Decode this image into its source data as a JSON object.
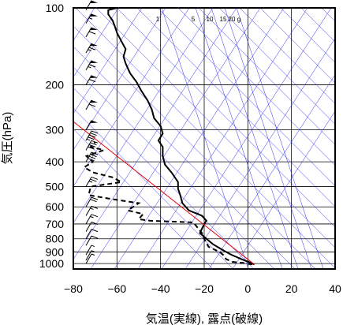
{
  "chart_data": {
    "type": "line",
    "xlabel": "気温(実線), 露点(破線)",
    "ylabel": "気圧(hPa)",
    "xlim": [
      -80,
      40
    ],
    "ylim_hpa": [
      1050,
      100
    ],
    "y_scale": "log",
    "grid": true,
    "x_ticks": [
      -80,
      -60,
      -40,
      -20,
      0,
      20,
      40
    ],
    "x_tick_labels": [
      "−80",
      "−60",
      "−40",
      "−20",
      "0",
      "20",
      "40"
    ],
    "y_ticks": [
      100,
      200,
      300,
      400,
      500,
      600,
      700,
      800,
      900,
      1000
    ],
    "y_tick_labels": [
      "100",
      "200",
      "300",
      "400",
      "500",
      "600",
      "700",
      "800",
      "900",
      "1000"
    ],
    "mixing_ratio_labels": [
      "1",
      "5",
      "10",
      "15",
      "20",
      "g"
    ],
    "mixing_ratio_values": [
      1,
      5,
      10,
      15,
      20
    ],
    "colors": {
      "temperature": "#000000",
      "dewpoint": "#000000",
      "parcel": "#e8000b",
      "adiabats": "#2a2af0",
      "grid": "#000000"
    },
    "series": [
      {
        "style": "solid",
        "points": [
          [
            3,
            1008
          ],
          [
            1,
            990
          ],
          [
            -3,
            960
          ],
          [
            -8,
            920
          ],
          [
            -12,
            880
          ],
          [
            -16,
            840
          ],
          [
            -19,
            800
          ],
          [
            -22,
            760
          ],
          [
            -20,
            700
          ],
          [
            -19,
            680
          ],
          [
            -21,
            650
          ],
          [
            -27,
            620
          ],
          [
            -30,
            580
          ],
          [
            -31,
            540
          ],
          [
            -32,
            510
          ],
          [
            -32,
            480
          ],
          [
            -35,
            440
          ],
          [
            -38,
            410
          ],
          [
            -39,
            380
          ],
          [
            -39,
            350
          ],
          [
            -41,
            330
          ],
          [
            -39,
            310
          ],
          [
            -40,
            290
          ],
          [
            -43,
            270
          ],
          [
            -44,
            250
          ],
          [
            -46,
            230
          ],
          [
            -49,
            210
          ],
          [
            -51,
            195
          ],
          [
            -54,
            180
          ],
          [
            -56,
            165
          ],
          [
            -57,
            155
          ],
          [
            -56,
            145
          ],
          [
            -58,
            135
          ],
          [
            -60,
            125
          ],
          [
            -61,
            118
          ],
          [
            -62,
            112
          ],
          [
            -64,
            106
          ],
          [
            -64,
            102
          ],
          [
            -60,
            100
          ]
        ]
      },
      {
        "style": "dashed",
        "points": [
          [
            2,
            1008
          ],
          [
            -2,
            995
          ],
          [
            -7,
            985
          ],
          [
            -10,
            960
          ],
          [
            -11,
            930
          ],
          [
            -13,
            900
          ],
          [
            -18,
            860
          ],
          [
            -20,
            800
          ],
          [
            -21,
            760
          ],
          [
            -25,
            690
          ],
          [
            -45,
            680
          ],
          [
            -50,
            670
          ],
          [
            -48,
            640
          ],
          [
            -55,
            620
          ],
          [
            -50,
            580
          ],
          [
            -62,
            560
          ],
          [
            -73,
            540
          ],
          [
            -72,
            500
          ],
          [
            -58,
            480
          ],
          [
            -62,
            460
          ],
          [
            -71,
            440
          ],
          [
            -75,
            420
          ],
          [
            -71,
            400
          ],
          [
            -74,
            380
          ],
          [
            -66,
            360
          ],
          [
            -72,
            350
          ],
          [
            -70,
            335
          ]
        ]
      },
      {
        "style": "solid-red",
        "points": [
          [
            3,
            1008
          ],
          [
            -82,
            270
          ]
        ]
      }
    ],
    "wind_barbs": [
      {
        "p": 1000,
        "speed": 5
      },
      {
        "p": 970,
        "speed": 5
      },
      {
        "p": 925,
        "speed": 5
      },
      {
        "p": 850,
        "speed": 10
      },
      {
        "p": 800,
        "speed": 10
      },
      {
        "p": 750,
        "speed": 10
      },
      {
        "p": 700,
        "speed": 15
      },
      {
        "p": 650,
        "speed": 15
      },
      {
        "p": 600,
        "speed": 20
      },
      {
        "p": 500,
        "speed": 25
      },
      {
        "p": 400,
        "speed": 40
      },
      {
        "p": 360,
        "speed": 40
      },
      {
        "p": 330,
        "speed": 45
      },
      {
        "p": 300,
        "speed": 50
      },
      {
        "p": 250,
        "speed": 60
      },
      {
        "p": 200,
        "speed": 60
      },
      {
        "p": 175,
        "speed": 65
      },
      {
        "p": 150,
        "speed": 65
      },
      {
        "p": 130,
        "speed": 60
      },
      {
        "p": 115,
        "speed": 55
      },
      {
        "p": 102,
        "speed": 50
      }
    ]
  }
}
